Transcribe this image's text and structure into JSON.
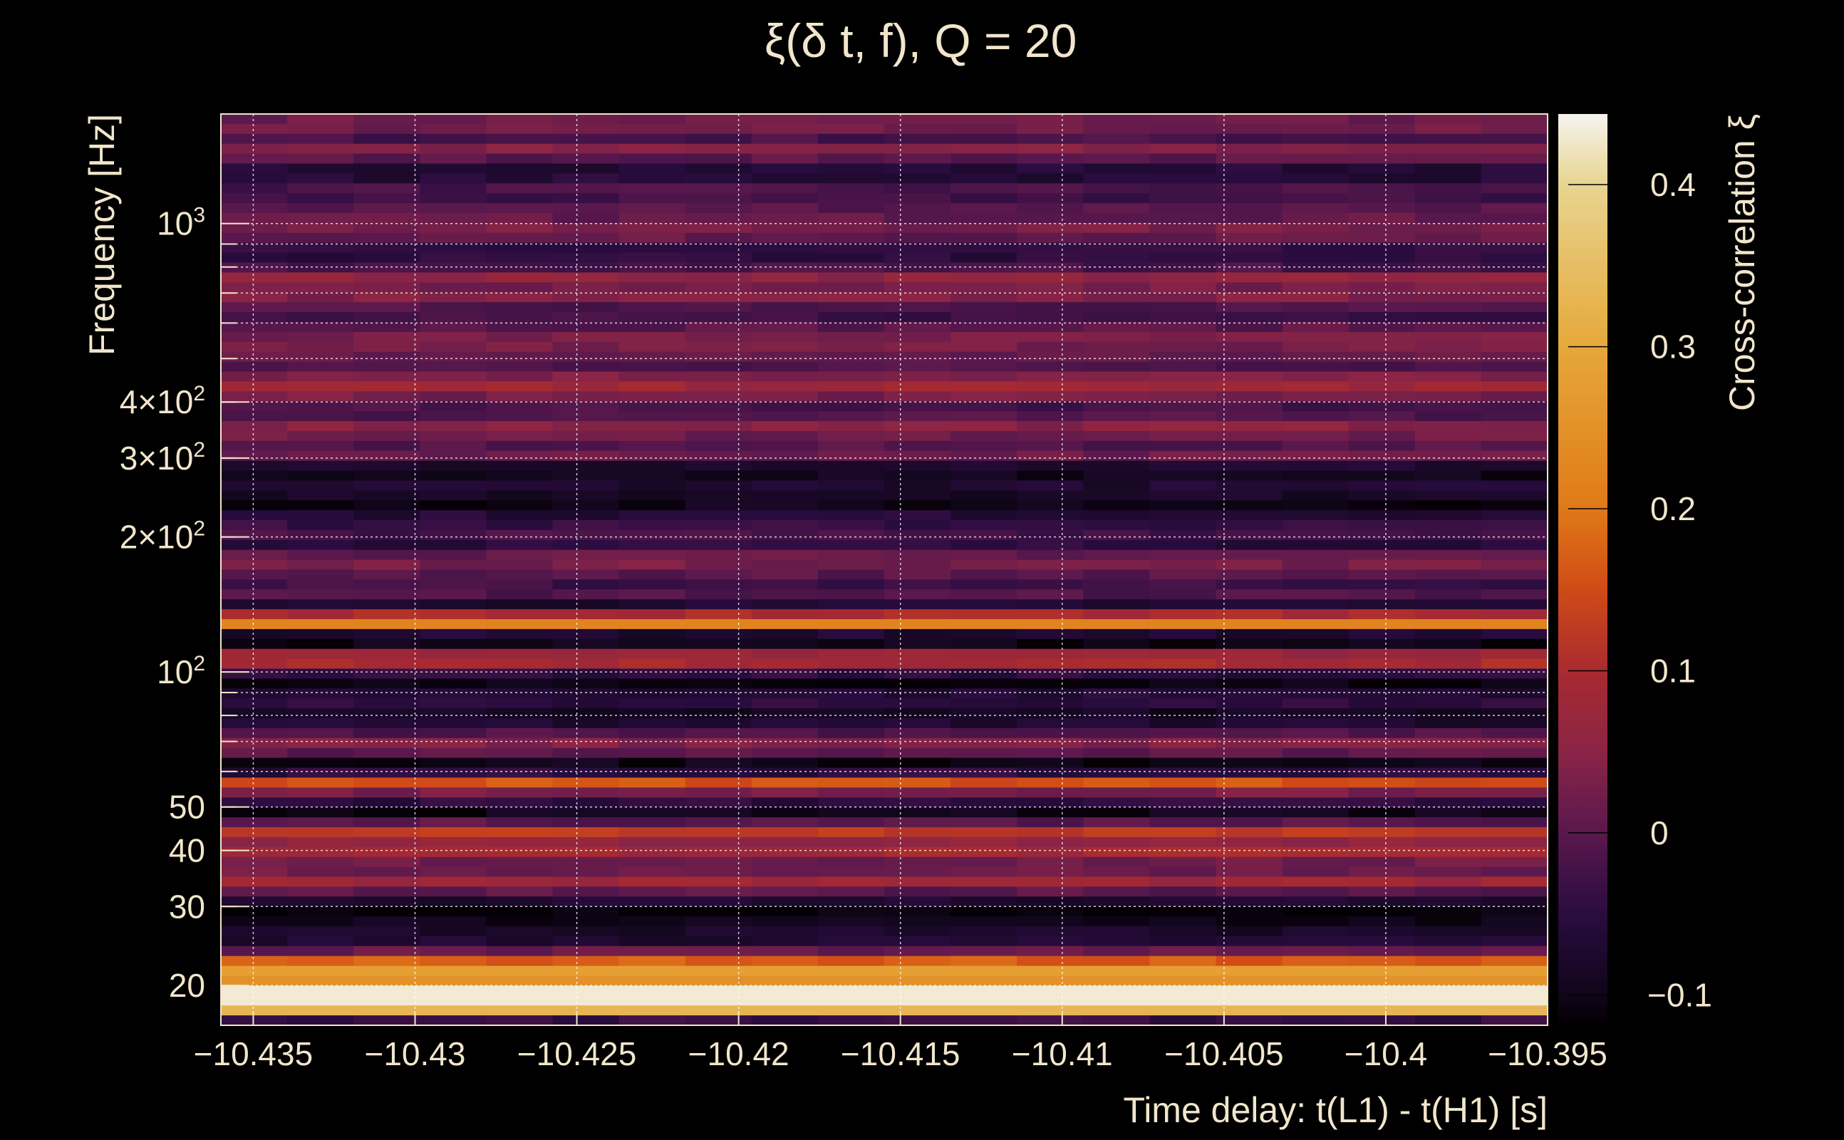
{
  "chart_data": {
    "type": "heatmap",
    "title": "ξ(δ t, f), Q = 20",
    "xlabel": "Time delay: t(L1) - t(H1) [s]",
    "ylabel": "Frequency [Hz]",
    "colorbar_label": "Cross-correlation ξ",
    "xlim": [
      -10.436,
      -10.395
    ],
    "ylim": [
      16.3,
      1755
    ],
    "yscale": "log",
    "clim": [
      -0.117,
      0.4436
    ],
    "grid": true,
    "x_ticks": [
      -10.435,
      -10.43,
      -10.425,
      -10.42,
      -10.415,
      -10.41,
      -10.405,
      -10.4,
      -10.395
    ],
    "x_tick_labels": [
      "−10.435",
      "−10.43",
      "−10.425",
      "−10.42",
      "−10.415",
      "−10.41",
      "−10.405",
      "−10.4",
      "−10.395"
    ],
    "y_ticks": [
      {
        "value": 1000,
        "base": "10",
        "exp": "3"
      },
      {
        "value": 400,
        "base": "4×10",
        "exp": "2"
      },
      {
        "value": 300,
        "base": "3×10",
        "exp": "2"
      },
      {
        "value": 200,
        "base": "2×10",
        "exp": "2"
      },
      {
        "value": 100,
        "base": "10",
        "exp": "2"
      },
      {
        "value": 50,
        "base": "50",
        "exp": ""
      },
      {
        "value": 40,
        "base": "40",
        "exp": ""
      },
      {
        "value": 30,
        "base": "30",
        "exp": ""
      },
      {
        "value": 20,
        "base": "20",
        "exp": ""
      }
    ],
    "y_minor_ticks": [
      20,
      30,
      40,
      50,
      60,
      70,
      80,
      90,
      200,
      300,
      400,
      500,
      600,
      700,
      800,
      900
    ],
    "colorbar_ticks": [
      0.4,
      0.3,
      0.2,
      0.1,
      0,
      -0.1
    ],
    "colorbar_tick_labels": [
      "0.4",
      "0.3",
      "0.2",
      "0.1",
      "0",
      "−0.1"
    ],
    "row_values_top_to_bottom": [
      0.02,
      0.02,
      -0.02,
      0.04,
      0.0,
      -0.06,
      -0.06,
      -0.02,
      -0.03,
      0.0,
      0.01,
      0.03,
      0.01,
      -0.05,
      -0.05,
      -0.02,
      0.06,
      0.03,
      0.04,
      -0.01,
      -0.03,
      0.0,
      0.03,
      0.03,
      0.01,
      -0.01,
      0.04,
      0.08,
      0.03,
      -0.02,
      -0.01,
      0.05,
      0.02,
      -0.01,
      0.02,
      -0.07,
      -0.1,
      -0.07,
      -0.08,
      -0.1,
      -0.06,
      -0.04,
      -0.02,
      -0.05,
      0.01,
      0.03,
      0.0,
      -0.03,
      -0.01,
      -0.07,
      0.1,
      0.22,
      -0.07,
      -0.1,
      0.07,
      0.1,
      -0.05,
      -0.11,
      -0.06,
      -0.05,
      -0.09,
      -0.07,
      -0.01,
      0.04,
      0.0,
      -0.1,
      -0.05,
      0.16,
      0.03,
      -0.05,
      -0.1,
      0.0,
      0.13,
      0.06,
      0.09,
      0.02,
      0.02,
      0.08,
      0.0,
      -0.07,
      -0.12,
      -0.1,
      -0.08,
      -0.07,
      0.01,
      0.17,
      0.28,
      0.25,
      0.43,
      0.43,
      0.33,
      -0.04
    ]
  }
}
